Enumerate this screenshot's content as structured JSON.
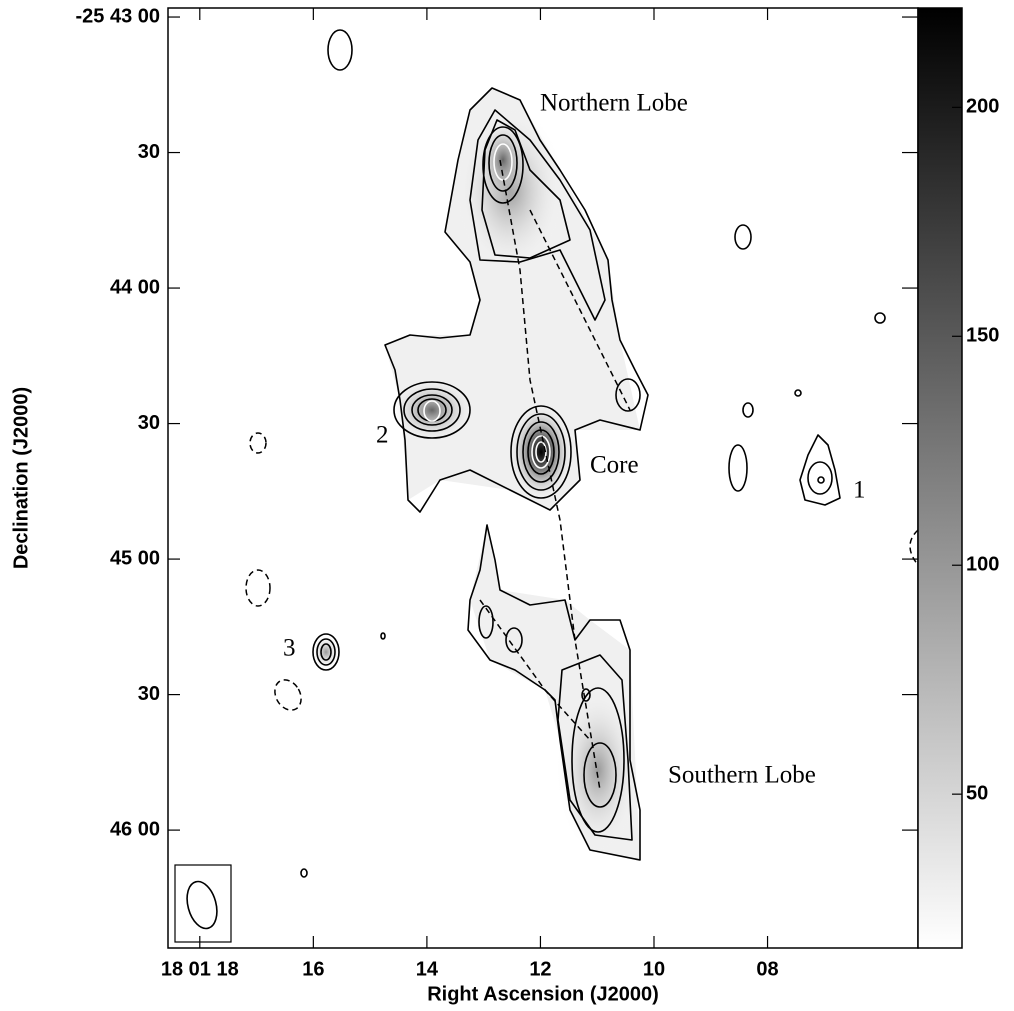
{
  "chart_data": {
    "type": "contour-map",
    "x_label": "Right Ascension (J2000)",
    "y_label": "Declination (J2000)",
    "xlim": [
      18.56,
      5.35
    ],
    "xticks": [
      {
        "value": 18,
        "label": "18 01 18"
      },
      16,
      14,
      12,
      10,
      {
        "value": 8,
        "label": "08"
      }
    ],
    "ylim": [
      -2,
      206.1
    ],
    "yticks": [
      {
        "value": 0,
        "label": "-25 43 00"
      },
      30,
      {
        "value": 60,
        "label": "44 00"
      },
      {
        "value": 90,
        "label": "30"
      },
      {
        "value": 120,
        "label": "45 00"
      },
      {
        "value": 150,
        "label": "30"
      },
      {
        "value": 180,
        "label": "46 00"
      }
    ],
    "colorbar": {
      "lim": [
        16.4,
        221.7
      ],
      "ticks": [
        50,
        100,
        150,
        200
      ]
    },
    "annotations": [
      "Northern Lobe",
      "Core",
      "Southern Lobe",
      "1",
      "2",
      "3"
    ]
  }
}
